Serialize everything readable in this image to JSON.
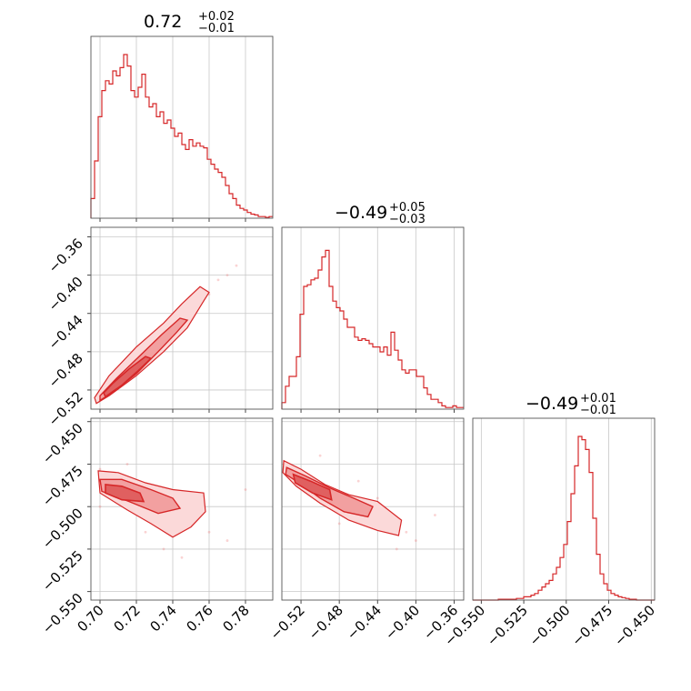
{
  "colors": {
    "series": "#d62728",
    "fill_light": "#fbd9d9",
    "fill_mid": "#f2a0a0",
    "fill_dark": "#e06060",
    "grid": "#c8c8c8"
  },
  "chart_data": {
    "type": "corner",
    "params": [
      {
        "summary": {
          "median": "0.72",
          "plus": "+0.02",
          "minus": "−0.01"
        },
        "range": [
          0.695,
          0.795
        ],
        "ticks": [
          0.7,
          0.72,
          0.74,
          0.76,
          0.78
        ],
        "tick_labels": [
          "0.70",
          "0.72",
          "0.74",
          "0.76",
          "0.78"
        ],
        "hist": [
          0.12,
          0.35,
          0.62,
          0.78,
          0.84,
          0.82,
          0.9,
          0.87,
          0.92,
          1.0,
          0.93,
          0.78,
          0.74,
          0.8,
          0.88,
          0.74,
          0.68,
          0.7,
          0.62,
          0.65,
          0.58,
          0.6,
          0.55,
          0.5,
          0.52,
          0.45,
          0.42,
          0.48,
          0.44,
          0.46,
          0.44,
          0.43,
          0.36,
          0.33,
          0.3,
          0.28,
          0.25,
          0.2,
          0.15,
          0.12,
          0.08,
          0.06,
          0.05,
          0.035,
          0.025,
          0.02,
          0.01,
          0.01,
          0.005,
          0.01
        ]
      },
      {
        "summary": {
          "median": "−0.49",
          "plus": "+0.05",
          "minus": "−0.03"
        },
        "range": [
          -0.54,
          -0.35
        ],
        "ticks": [
          -0.52,
          -0.48,
          -0.44,
          -0.4,
          -0.36
        ],
        "tick_labels": [
          "−0.52",
          "−0.48",
          "−0.44",
          "−0.40",
          "−0.36"
        ],
        "hist": [
          0.04,
          0.14,
          0.2,
          0.2,
          0.32,
          0.58,
          0.75,
          0.76,
          0.79,
          0.8,
          0.85,
          0.93,
          0.97,
          0.75,
          0.66,
          0.62,
          0.6,
          0.55,
          0.5,
          0.5,
          0.44,
          0.42,
          0.43,
          0.42,
          0.4,
          0.38,
          0.38,
          0.35,
          0.38,
          0.33,
          0.47,
          0.36,
          0.3,
          0.24,
          0.22,
          0.24,
          0.24,
          0.2,
          0.2,
          0.13,
          0.09,
          0.06,
          0.06,
          0.04,
          0.02,
          0.01,
          0.01,
          0.02,
          0.01,
          0.01
        ]
      },
      {
        "summary": {
          "median": "−0.49",
          "plus": "+0.01",
          "minus": "−0.01"
        },
        "range": [
          -0.555,
          -0.448
        ],
        "ticks": [
          -0.55,
          -0.525,
          -0.5,
          -0.475,
          -0.45
        ],
        "tick_labels": [
          "−0.550",
          "−0.525",
          "−0.500",
          "−0.475",
          "−0.450"
        ],
        "hist": [
          0,
          0,
          0,
          0,
          0,
          0,
          0,
          0.005,
          0.005,
          0.005,
          0.005,
          0.005,
          0.01,
          0.01,
          0.02,
          0.02,
          0.03,
          0.04,
          0.06,
          0.08,
          0.1,
          0.12,
          0.16,
          0.2,
          0.26,
          0.34,
          0.48,
          0.65,
          0.82,
          1.0,
          0.98,
          0.92,
          0.78,
          0.5,
          0.28,
          0.16,
          0.1,
          0.06,
          0.04,
          0.03,
          0.02,
          0.015,
          0.01,
          0.005,
          0.005,
          0,
          0,
          0,
          0,
          0
        ]
      }
    ],
    "pairs": [
      {
        "col": 0,
        "row": 1,
        "points": [
          [
            0.7,
            -0.53
          ],
          [
            0.705,
            -0.522
          ],
          [
            0.71,
            -0.51
          ],
          [
            0.72,
            -0.495
          ],
          [
            0.73,
            -0.48
          ],
          [
            0.74,
            -0.455
          ],
          [
            0.75,
            -0.44
          ],
          [
            0.76,
            -0.42
          ],
          [
            0.765,
            -0.405
          ],
          [
            0.77,
            -0.4
          ],
          [
            0.775,
            -0.39
          ],
          [
            0.745,
            -0.45
          ],
          [
            0.755,
            -0.43
          ],
          [
            0.725,
            -0.49
          ],
          [
            0.715,
            -0.505
          ],
          [
            0.735,
            -0.465
          ]
        ],
        "contours": [
          [
            [
              0.698,
              -0.534
            ],
            [
              0.705,
              -0.526
            ],
            [
              0.72,
              -0.505
            ],
            [
              0.735,
              -0.48
            ],
            [
              0.748,
              -0.455
            ],
            [
              0.757,
              -0.427
            ],
            [
              0.76,
              -0.418
            ],
            [
              0.755,
              -0.412
            ],
            [
              0.745,
              -0.43
            ],
            [
              0.735,
              -0.45
            ],
            [
              0.72,
              -0.475
            ],
            [
              0.705,
              -0.505
            ],
            [
              0.697,
              -0.528
            ]
          ],
          [
            [
              0.7,
              -0.531
            ],
            [
              0.708,
              -0.521
            ],
            [
              0.72,
              -0.503
            ],
            [
              0.732,
              -0.48
            ],
            [
              0.742,
              -0.46
            ],
            [
              0.748,
              -0.447
            ],
            [
              0.744,
              -0.445
            ],
            [
              0.734,
              -0.462
            ],
            [
              0.722,
              -0.484
            ],
            [
              0.709,
              -0.508
            ],
            [
              0.7,
              -0.526
            ]
          ],
          [
            [
              0.703,
              -0.527
            ],
            [
              0.712,
              -0.515
            ],
            [
              0.722,
              -0.498
            ],
            [
              0.728,
              -0.487
            ],
            [
              0.725,
              -0.485
            ],
            [
              0.716,
              -0.498
            ],
            [
              0.707,
              -0.513
            ],
            [
              0.702,
              -0.523
            ]
          ]
        ]
      },
      {
        "col": 0,
        "row": 2,
        "points": [
          [
            0.7,
            -0.478
          ],
          [
            0.71,
            -0.49
          ],
          [
            0.72,
            -0.5
          ],
          [
            0.73,
            -0.505
          ],
          [
            0.74,
            -0.51
          ],
          [
            0.75,
            -0.495
          ],
          [
            0.76,
            -0.515
          ],
          [
            0.77,
            -0.52
          ],
          [
            0.78,
            -0.49
          ],
          [
            0.7,
            -0.5
          ],
          [
            0.715,
            -0.475
          ],
          [
            0.735,
            -0.525
          ],
          [
            0.745,
            -0.53
          ],
          [
            0.725,
            -0.515
          ]
        ],
        "contours": [
          [
            [
              0.699,
              -0.479
            ],
            [
              0.71,
              -0.48
            ],
            [
              0.725,
              -0.486
            ],
            [
              0.74,
              -0.49
            ],
            [
              0.757,
              -0.492
            ],
            [
              0.758,
              -0.503
            ],
            [
              0.75,
              -0.512
            ],
            [
              0.74,
              -0.518
            ],
            [
              0.728,
              -0.51
            ],
            [
              0.715,
              -0.502
            ],
            [
              0.7,
              -0.492
            ]
          ],
          [
            [
              0.7,
              -0.484
            ],
            [
              0.712,
              -0.484
            ],
            [
              0.728,
              -0.49
            ],
            [
              0.74,
              -0.495
            ],
            [
              0.744,
              -0.501
            ],
            [
              0.732,
              -0.504
            ],
            [
              0.716,
              -0.497
            ],
            [
              0.701,
              -0.491
            ]
          ],
          [
            [
              0.703,
              -0.487
            ],
            [
              0.712,
              -0.488
            ],
            [
              0.722,
              -0.492
            ],
            [
              0.724,
              -0.497
            ],
            [
              0.712,
              -0.496
            ],
            [
              0.703,
              -0.492
            ]
          ]
        ]
      },
      {
        "col": 1,
        "row": 2,
        "points": [
          [
            -0.53,
            -0.478
          ],
          [
            -0.51,
            -0.49
          ],
          [
            -0.49,
            -0.492
          ],
          [
            -0.47,
            -0.5
          ],
          [
            -0.45,
            -0.505
          ],
          [
            -0.43,
            -0.51
          ],
          [
            -0.41,
            -0.515
          ],
          [
            -0.4,
            -0.52
          ],
          [
            -0.38,
            -0.505
          ],
          [
            -0.5,
            -0.47
          ],
          [
            -0.46,
            -0.485
          ],
          [
            -0.44,
            -0.495
          ],
          [
            -0.48,
            -0.51
          ],
          [
            -0.42,
            -0.525
          ]
        ],
        "contours": [
          [
            [
              -0.538,
              -0.473
            ],
            [
              -0.52,
              -0.478
            ],
            [
              -0.495,
              -0.487
            ],
            [
              -0.47,
              -0.493
            ],
            [
              -0.44,
              -0.497
            ],
            [
              -0.415,
              -0.508
            ],
            [
              -0.418,
              -0.517
            ],
            [
              -0.44,
              -0.514
            ],
            [
              -0.47,
              -0.508
            ],
            [
              -0.5,
              -0.498
            ],
            [
              -0.525,
              -0.488
            ],
            [
              -0.539,
              -0.48
            ]
          ],
          [
            [
              -0.535,
              -0.477
            ],
            [
              -0.515,
              -0.482
            ],
            [
              -0.49,
              -0.489
            ],
            [
              -0.465,
              -0.495
            ],
            [
              -0.445,
              -0.5
            ],
            [
              -0.45,
              -0.506
            ],
            [
              -0.475,
              -0.503
            ],
            [
              -0.5,
              -0.495
            ],
            [
              -0.522,
              -0.486
            ],
            [
              -0.536,
              -0.481
            ]
          ],
          [
            [
              -0.528,
              -0.481
            ],
            [
              -0.51,
              -0.485
            ],
            [
              -0.49,
              -0.49
            ],
            [
              -0.488,
              -0.496
            ],
            [
              -0.508,
              -0.492
            ],
            [
              -0.526,
              -0.486
            ]
          ]
        ]
      }
    ]
  }
}
